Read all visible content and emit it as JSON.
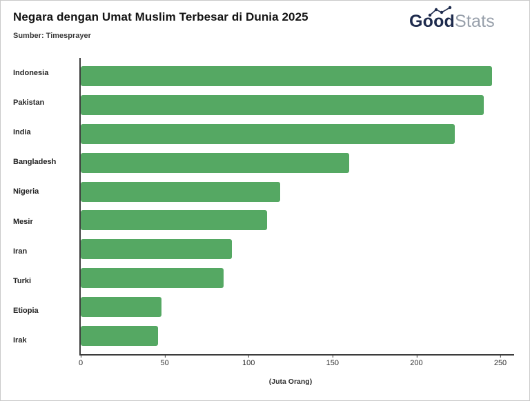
{
  "header": {
    "title": "Negara dengan Umat Muslim Terbesar di Dunia 2025",
    "source": "Sumber: Timesprayer",
    "logo": {
      "bold": "Good",
      "light": "Stats"
    }
  },
  "chart_data": {
    "type": "bar",
    "orientation": "horizontal",
    "title": "Negara dengan Umat Muslim Terbesar di Dunia 2025",
    "categories": [
      "Indonesia",
      "Pakistan",
      "India",
      "Bangladesh",
      "Nigeria",
      "Mesir",
      "Iran",
      "Turki",
      "Etiopia",
      "Irak"
    ],
    "values": [
      245,
      240,
      223,
      160,
      119,
      111,
      90,
      85,
      48,
      46
    ],
    "xlabel": "(Juta Orang)",
    "ylabel": "",
    "xlim": [
      0,
      250
    ],
    "xticks": [
      0,
      50,
      100,
      150,
      200,
      250
    ],
    "bar_color": "#55a863",
    "grid": false,
    "legend": false
  }
}
